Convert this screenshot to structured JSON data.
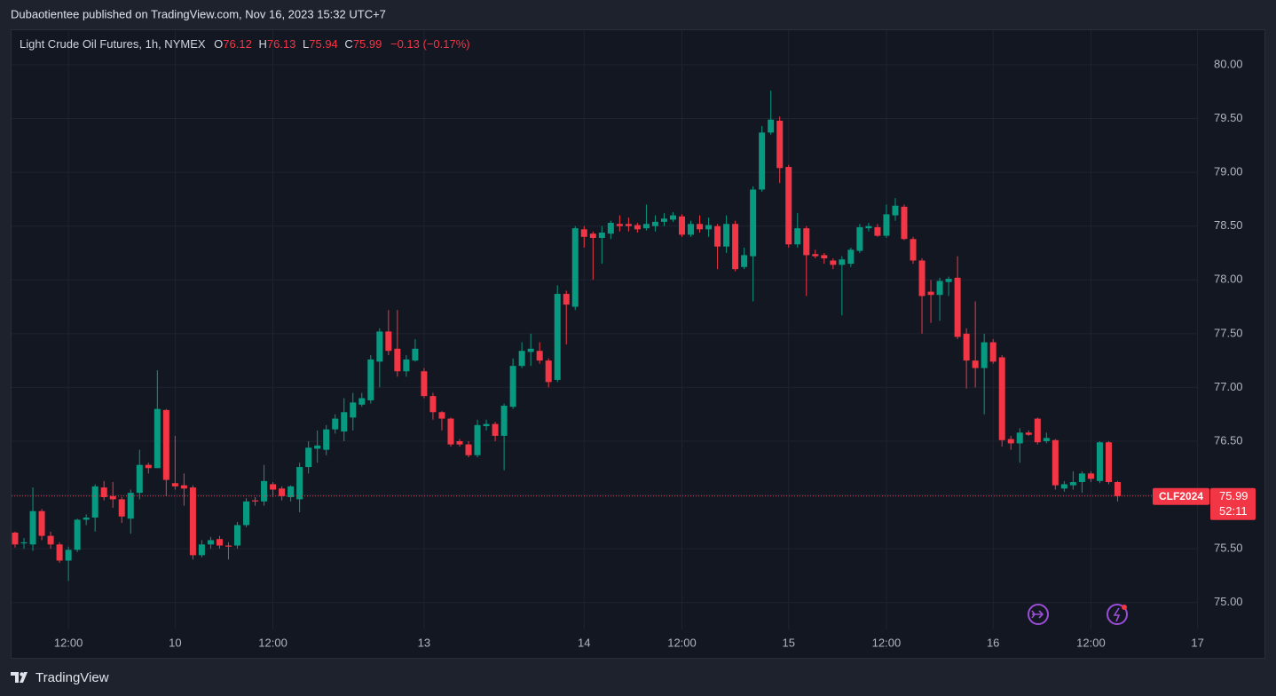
{
  "header": {
    "byline": "Dubaotientee published on TradingView.com, Nov 16, 2023 15:32 UTC+7"
  },
  "footer": {
    "brand": "TradingView"
  },
  "chart_data": {
    "type": "candlestick",
    "title": "Light Crude Oil Futures, 1h, NYMEX",
    "ohlc_labels": [
      "O",
      "H",
      "L",
      "C"
    ],
    "change_label": "−0.13 (−0.17%)",
    "symbol_label": "CLF2024",
    "countdown": "52:11",
    "up_color": "#089981",
    "down_color": "#f23645",
    "grid": true,
    "ylim": [
      74.75,
      80.33
    ],
    "yticks": [
      {
        "value": 75,
        "label": "75.00"
      },
      {
        "value": 75.5,
        "label": "75.50"
      },
      {
        "value": 76,
        "label": "76.00"
      },
      {
        "value": 76.5,
        "label": "76.50"
      },
      {
        "value": 77,
        "label": "77.00"
      },
      {
        "value": 77.5,
        "label": "77.50"
      },
      {
        "value": 78,
        "label": "78.00"
      },
      {
        "value": 78.5,
        "label": "78.50"
      },
      {
        "value": 79,
        "label": "79.00"
      },
      {
        "value": 79.5,
        "label": "79.50"
      },
      {
        "value": 80,
        "label": "80.00"
      }
    ],
    "categories": [
      null,
      null,
      null,
      null,
      null,
      null,
      "12:00",
      null,
      null,
      null,
      null,
      null,
      null,
      null,
      null,
      null,
      null,
      null,
      "10",
      null,
      null,
      null,
      null,
      null,
      null,
      null,
      null,
      null,
      null,
      "12:00",
      null,
      null,
      null,
      null,
      null,
      null,
      null,
      null,
      null,
      null,
      null,
      null,
      null,
      null,
      null,
      null,
      "13",
      null,
      null,
      null,
      null,
      null,
      null,
      null,
      null,
      null,
      null,
      null,
      null,
      null,
      null,
      null,
      null,
      null,
      "14",
      null,
      null,
      null,
      null,
      null,
      null,
      null,
      null,
      null,
      null,
      "12:00",
      null,
      null,
      null,
      null,
      null,
      null,
      null,
      null,
      null,
      null,
      null,
      "15",
      null,
      null,
      null,
      null,
      null,
      null,
      null,
      null,
      null,
      null,
      "12:00",
      null,
      null,
      null,
      null,
      null,
      null,
      null,
      null,
      null,
      null,
      null,
      "16",
      null,
      null,
      null,
      null,
      null,
      null,
      null,
      null,
      null,
      null,
      "12:00",
      null,
      null,
      null,
      null,
      null,
      null,
      null,
      null,
      null,
      null,
      null,
      "17"
    ],
    "open": [
      75.65,
      75.55,
      75.54,
      75.85,
      75.62,
      75.54,
      75.39,
      75.49,
      75.77,
      75.79,
      76.07,
      75.99,
      75.96,
      75.78,
      76.02,
      76.28,
      76.25,
      76.79,
      76.11,
      76.09,
      76.07,
      75.44,
      75.54,
      75.59,
      75.53,
      75.53,
      75.72,
      75.95,
      75.94,
      76.1,
      76.06,
      75.98,
      75.96,
      76.26,
      76.43,
      76.42,
      76.61,
      76.59,
      76.72,
      76.84,
      76.88,
      77.24,
      77.52,
      77.36,
      77.15,
      77.25,
      77.15,
      76.92,
      76.77,
      76.71,
      76.5,
      76.47,
      76.37,
      76.64,
      76.66,
      76.55,
      76.82,
      77.2,
      77.33,
      77.34,
      77.25,
      77.07,
      77.87,
      77.75,
      78.47,
      78.43,
      78.39,
      78.43,
      78.52,
      78.52,
      78.51,
      78.48,
      78.5,
      78.54,
      78.56,
      78.59,
      78.42,
      78.52,
      78.47,
      78.5,
      78.31,
      78.52,
      78.12,
      78.22,
      78.84,
      79.37,
      79.48,
      79.05,
      78.33,
      78.48,
      78.24,
      78.23,
      78.18,
      78.14,
      78.15,
      78.27,
      78.48,
      78.49,
      78.41,
      78.6,
      78.68,
      78.38,
      78.18,
      77.89,
      77.86,
      77.98,
      78.02,
      77.5,
      77.25,
      77.18,
      77.42,
      77.28,
      76.52,
      76.48,
      76.58,
      76.71,
      76.5,
      76.51,
      76.06,
      76.09,
      76.12,
      76.2,
      76.13,
      76.49,
      76.12,
      null,
      null,
      null,
      null,
      null,
      null,
      null,
      null,
      null
    ],
    "high": [
      75.66,
      75.6,
      76.07,
      75.87,
      75.66,
      75.56,
      75.52,
      75.78,
      75.82,
      76.1,
      76.13,
      76.12,
      75.98,
      76.05,
      76.42,
      76.3,
      77.16,
      76.8,
      76.55,
      76.2,
      76.09,
      75.58,
      75.61,
      75.62,
      75.56,
      75.75,
      75.97,
      75.98,
      76.28,
      76.12,
      76.08,
      76.09,
      76.3,
      76.5,
      76.6,
      76.65,
      76.75,
      76.9,
      76.95,
      76.95,
      77.3,
      77.55,
      77.72,
      77.72,
      77.3,
      77.45,
      77.18,
      76.95,
      76.78,
      76.72,
      76.52,
      76.5,
      76.7,
      76.7,
      76.68,
      76.85,
      77.27,
      77.42,
      77.5,
      77.42,
      77.27,
      77.95,
      77.9,
      78.5,
      78.5,
      78.45,
      78.5,
      78.55,
      78.6,
      78.58,
      78.53,
      78.7,
      78.6,
      78.62,
      78.63,
      78.61,
      78.55,
      78.6,
      78.58,
      78.52,
      78.6,
      78.55,
      78.3,
      78.87,
      79.43,
      79.76,
      79.52,
      79.07,
      78.62,
      78.5,
      78.28,
      78.25,
      78.2,
      78.22,
      78.3,
      78.52,
      78.53,
      78.52,
      78.7,
      78.76,
      78.7,
      78.4,
      78.2,
      78.0,
      78.02,
      78.03,
      78.22,
      77.55,
      77.8,
      77.5,
      77.45,
      77.3,
      76.55,
      76.62,
      76.6,
      76.72,
      76.58,
      76.52,
      76.13,
      76.22,
      76.22,
      76.22,
      76.5,
      76.5,
      76.13,
      null,
      null,
      null,
      null,
      null,
      null,
      null,
      null,
      null
    ],
    "low": [
      75.51,
      75.5,
      75.48,
      75.58,
      75.5,
      75.37,
      75.2,
      75.47,
      75.72,
      75.66,
      75.95,
      75.88,
      75.74,
      75.64,
      75.96,
      76.2,
      76.25,
      75.99,
      76.05,
      75.9,
      75.4,
      75.42,
      75.5,
      75.5,
      75.4,
      75.5,
      75.7,
      75.9,
      75.9,
      75.98,
      75.95,
      75.94,
      75.84,
      76.2,
      76.3,
      76.37,
      76.57,
      76.5,
      76.6,
      76.82,
      76.85,
      77.0,
      77.3,
      77.1,
      77.1,
      77.24,
      76.9,
      76.7,
      76.6,
      76.45,
      76.45,
      76.35,
      76.35,
      76.6,
      76.5,
      76.23,
      76.8,
      77.18,
      77.2,
      77.22,
      77.0,
      77.05,
      77.4,
      77.72,
      78.3,
      78.0,
      78.15,
      78.38,
      78.45,
      78.45,
      78.44,
      78.46,
      78.45,
      78.5,
      78.54,
      78.4,
      78.4,
      78.44,
      78.4,
      78.1,
      78.25,
      78.08,
      78.1,
      77.8,
      78.82,
      79.35,
      78.9,
      78.3,
      78.3,
      77.85,
      78.2,
      78.15,
      78.1,
      77.67,
      78.12,
      78.25,
      78.45,
      78.4,
      78.39,
      78.55,
      78.37,
      78.15,
      77.5,
      77.6,
      77.62,
      77.85,
      77.45,
      76.99,
      77.0,
      76.75,
      77.22,
      76.45,
      76.42,
      76.3,
      76.55,
      76.47,
      76.48,
      76.05,
      76.03,
      76.05,
      76.02,
      76.12,
      76.11,
      76.1,
      75.94,
      null,
      null,
      null,
      null,
      null,
      null,
      null,
      null,
      null
    ],
    "close": [
      75.54,
      75.56,
      75.85,
      75.62,
      75.54,
      75.39,
      75.49,
      75.77,
      75.79,
      76.08,
      75.98,
      75.96,
      75.8,
      76.02,
      76.28,
      76.25,
      76.8,
      76.14,
      76.08,
      76.06,
      75.44,
      75.54,
      75.58,
      75.53,
      75.52,
      75.72,
      75.94,
      75.94,
      76.13,
      76.05,
      75.99,
      76.08,
      76.26,
      76.44,
      76.46,
      76.61,
      76.71,
      76.77,
      76.86,
      76.9,
      77.26,
      77.52,
      77.34,
      77.15,
      77.26,
      77.36,
      76.92,
      76.77,
      76.71,
      76.47,
      76.47,
      76.37,
      76.65,
      76.66,
      76.55,
      76.83,
      77.2,
      77.34,
      77.36,
      77.25,
      77.05,
      77.87,
      77.77,
      78.48,
      78.4,
      78.39,
      78.44,
      78.53,
      78.5,
      78.5,
      78.47,
      78.52,
      78.54,
      78.57,
      78.6,
      78.42,
      78.52,
      78.47,
      78.51,
      78.31,
      78.52,
      78.1,
      78.23,
      78.84,
      79.37,
      79.49,
      79.04,
      78.33,
      78.48,
      78.23,
      78.22,
      78.2,
      78.14,
      78.19,
      78.28,
      78.49,
      78.5,
      78.41,
      78.61,
      78.69,
      78.38,
      78.18,
      77.85,
      77.86,
      77.99,
      78.01,
      77.47,
      77.25,
      77.18,
      77.42,
      77.24,
      76.51,
      76.48,
      76.58,
      76.56,
      76.49,
      76.53,
      76.09,
      76.1,
      76.12,
      76.2,
      76.15,
      76.49,
      76.12,
      75.99,
      null,
      null,
      null,
      null,
      null,
      null,
      null,
      null,
      null
    ]
  }
}
